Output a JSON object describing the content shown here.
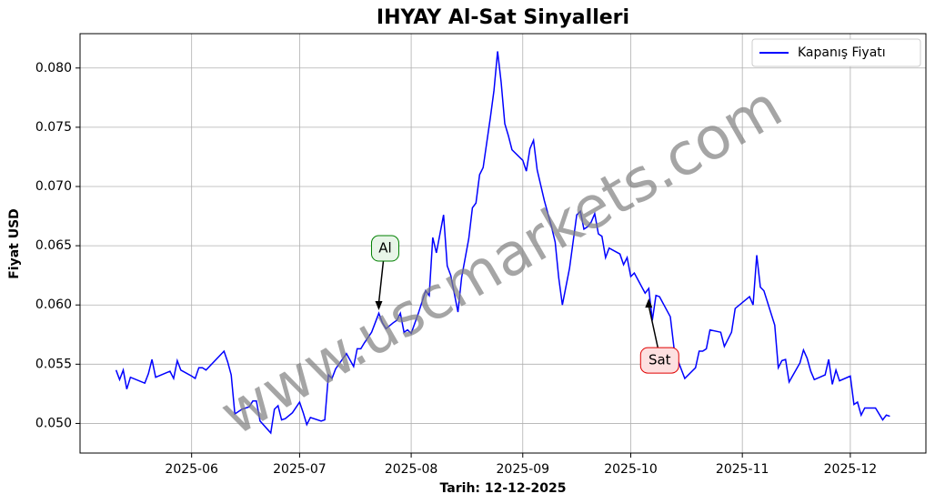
{
  "chart_data": {
    "type": "line",
    "title": "IHYAY Al-Sat Sinyalleri",
    "xlabel": "Tarih: 12-12-2025",
    "ylabel": "Fiyat USD",
    "watermark": "www.uscmarkets.com",
    "grid": true,
    "legend": "upper right",
    "x": [
      "2025-05-11",
      "2025-05-12",
      "2025-05-13",
      "2025-05-14",
      "2025-05-15",
      "2025-05-19",
      "2025-05-20",
      "2025-05-21",
      "2025-05-22",
      "2025-05-26",
      "2025-05-27",
      "2025-05-28",
      "2025-05-29",
      "2025-06-01",
      "2025-06-02",
      "2025-06-03",
      "2025-06-04",
      "2025-06-05",
      "2025-06-10",
      "2025-06-11",
      "2025-06-12",
      "2025-06-13",
      "2025-06-15",
      "2025-06-17",
      "2025-06-18",
      "2025-06-19",
      "2025-06-20",
      "2025-06-23",
      "2025-06-24",
      "2025-06-25",
      "2025-06-26",
      "2025-06-27",
      "2025-06-29",
      "2025-07-01",
      "2025-07-02",
      "2025-07-03",
      "2025-07-04",
      "2025-07-07",
      "2025-07-08",
      "2025-07-09",
      "2025-07-10",
      "2025-07-11",
      "2025-07-14",
      "2025-07-16",
      "2025-07-17",
      "2025-07-18",
      "2025-07-19",
      "2025-07-21",
      "2025-07-23",
      "2025-07-24",
      "2025-07-25",
      "2025-07-27",
      "2025-07-28",
      "2025-07-29",
      "2025-07-30",
      "2025-07-31",
      "2025-08-01",
      "2025-08-03",
      "2025-08-05",
      "2025-08-06",
      "2025-08-07",
      "2025-08-08",
      "2025-08-10",
      "2025-08-11",
      "2025-08-12",
      "2025-08-14",
      "2025-08-15",
      "2025-08-17",
      "2025-08-18",
      "2025-08-19",
      "2025-08-20",
      "2025-08-21",
      "2025-08-23",
      "2025-08-24",
      "2025-08-25",
      "2025-08-26",
      "2025-08-27",
      "2025-08-28",
      "2025-08-29",
      "2025-09-01",
      "2025-09-02",
      "2025-09-03",
      "2025-09-04",
      "2025-09-05",
      "2025-09-07",
      "2025-09-09",
      "2025-09-10",
      "2025-09-11",
      "2025-09-12",
      "2025-09-14",
      "2025-09-16",
      "2025-09-17",
      "2025-09-18",
      "2025-09-19",
      "2025-09-20",
      "2025-09-21",
      "2025-09-22",
      "2025-09-23",
      "2025-09-24",
      "2025-09-25",
      "2025-09-28",
      "2025-09-29",
      "2025-09-30",
      "2025-10-01",
      "2025-10-02",
      "2025-10-05",
      "2025-10-06",
      "2025-10-07",
      "2025-10-08",
      "2025-10-09",
      "2025-10-12",
      "2025-10-13",
      "2025-10-14",
      "2025-10-16",
      "2025-10-19",
      "2025-10-20",
      "2025-10-21",
      "2025-10-22",
      "2025-10-23",
      "2025-10-26",
      "2025-10-27",
      "2025-10-29",
      "2025-10-30",
      "2025-11-03",
      "2025-11-04",
      "2025-11-05",
      "2025-11-06",
      "2025-11-07",
      "2025-11-10",
      "2025-11-11",
      "2025-11-12",
      "2025-11-13",
      "2025-11-14",
      "2025-11-17",
      "2025-11-18",
      "2025-11-19",
      "2025-11-20",
      "2025-11-21",
      "2025-11-24",
      "2025-11-25",
      "2025-11-26",
      "2025-11-27",
      "2025-11-28",
      "2025-12-01",
      "2025-12-02",
      "2025-12-03",
      "2025-12-04",
      "2025-12-05",
      "2025-12-08",
      "2025-12-10",
      "2025-12-11",
      "2025-12-12"
    ],
    "series": [
      {
        "name": "Kapanış Fiyatı",
        "color": "#0000ff",
        "values": [
          0.0545,
          0.0537,
          0.0545,
          0.0529,
          0.0539,
          0.0534,
          0.0542,
          0.0554,
          0.0539,
          0.0544,
          0.0538,
          0.0553,
          0.0545,
          0.054,
          0.0538,
          0.0547,
          0.0547,
          0.0545,
          0.0561,
          0.0552,
          0.0541,
          0.0508,
          0.0512,
          0.0514,
          0.0519,
          0.0519,
          0.0502,
          0.0492,
          0.0512,
          0.0515,
          0.0503,
          0.0504,
          0.0509,
          0.0518,
          0.0509,
          0.0499,
          0.0505,
          0.0502,
          0.0503,
          0.0541,
          0.0538,
          0.0546,
          0.0559,
          0.0548,
          0.0563,
          0.0563,
          0.0568,
          0.0577,
          0.0593,
          0.0585,
          0.058,
          0.0585,
          0.0587,
          0.0593,
          0.0577,
          0.0579,
          0.0576,
          0.0593,
          0.0612,
          0.0608,
          0.0657,
          0.0644,
          0.0676,
          0.0633,
          0.0625,
          0.0594,
          0.0623,
          0.0656,
          0.0682,
          0.0686,
          0.071,
          0.0716,
          0.0758,
          0.0781,
          0.0814,
          0.0788,
          0.0753,
          0.0743,
          0.0731,
          0.0722,
          0.0713,
          0.0732,
          0.0739,
          0.0714,
          0.0688,
          0.0666,
          0.0653,
          0.0623,
          0.06,
          0.0631,
          0.0676,
          0.0679,
          0.0664,
          0.0666,
          0.067,
          0.0677,
          0.066,
          0.0658,
          0.064,
          0.0648,
          0.0643,
          0.0634,
          0.064,
          0.0624,
          0.0627,
          0.061,
          0.0614,
          0.0587,
          0.0608,
          0.0607,
          0.059,
          0.0564,
          0.0554,
          0.0538,
          0.0547,
          0.0561,
          0.0561,
          0.0563,
          0.0579,
          0.0577,
          0.0565,
          0.0577,
          0.0597,
          0.0607,
          0.06,
          0.0642,
          0.0615,
          0.0612,
          0.0583,
          0.0547,
          0.0553,
          0.0554,
          0.0535,
          0.0551,
          0.0562,
          0.0555,
          0.0544,
          0.0537,
          0.0541,
          0.0554,
          0.0533,
          0.0545,
          0.0536,
          0.054,
          0.0516,
          0.0518,
          0.0507,
          0.0513,
          0.0513,
          0.0503,
          0.0507,
          0.0506
        ]
      }
    ],
    "annotations": [
      {
        "text": "Al",
        "x": "2025-07-23",
        "y": 0.0594,
        "color": "#008000",
        "face": "#e8f5e8"
      },
      {
        "text": "Sat",
        "x": "2025-10-06",
        "y": 0.0607,
        "color": "#e00000",
        "face": "#fde0e0"
      }
    ],
    "xlim": [
      "2025-05-01",
      "2025-12-22"
    ],
    "xticks": [
      {
        "value": "2025-06-01",
        "label": "2025-06"
      },
      {
        "value": "2025-07-01",
        "label": "2025-07"
      },
      {
        "value": "2025-08-01",
        "label": "2025-08"
      },
      {
        "value": "2025-09-01",
        "label": "2025-09"
      },
      {
        "value": "2025-10-01",
        "label": "2025-10"
      },
      {
        "value": "2025-11-01",
        "label": "2025-11"
      },
      {
        "value": "2025-12-01",
        "label": "2025-12"
      }
    ],
    "ylim": [
      0.0475,
      0.0829
    ],
    "yticks": [
      {
        "value": 0.05,
        "label": "0.050"
      },
      {
        "value": 0.055,
        "label": "0.055"
      },
      {
        "value": 0.06,
        "label": "0.060"
      },
      {
        "value": 0.065,
        "label": "0.065"
      },
      {
        "value": 0.07,
        "label": "0.070"
      },
      {
        "value": 0.075,
        "label": "0.075"
      },
      {
        "value": 0.08,
        "label": "0.080"
      }
    ]
  }
}
